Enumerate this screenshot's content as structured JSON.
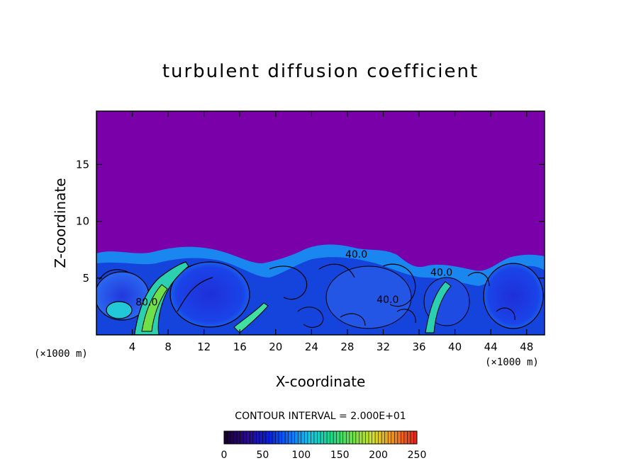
{
  "chart_data": {
    "type": "heatmap",
    "title": "turbulent diffusion coefficient",
    "xlabel": "X-coordinate",
    "ylabel": "Z-coordinate",
    "x_units": "(×1000 m)",
    "z_units": "(×1000 m)",
    "xlim": [
      0,
      50
    ],
    "ylim": [
      0,
      19.7
    ],
    "x_ticks": [
      4,
      8,
      12,
      16,
      20,
      24,
      28,
      32,
      36,
      40,
      44,
      48
    ],
    "y_ticks": [
      5,
      10,
      15
    ],
    "contour_interval_text": "CONTOUR INTERVAL = 2.000E+01",
    "contour_labels": [
      {
        "text": "80.0",
        "x": 5.6,
        "z": 2.6
      },
      {
        "text": "40.0",
        "x": 29.0,
        "z": 6.8
      },
      {
        "text": "40.0",
        "x": 32.5,
        "z": 2.8
      },
      {
        "text": "40.0",
        "x": 38.5,
        "z": 5.2
      }
    ],
    "colorbar": {
      "min": 0,
      "max": 250,
      "tick_labels": [
        "0",
        "50",
        "100",
        "150",
        "200",
        "250"
      ],
      "colors": [
        "#1a0033",
        "#2a0a8a",
        "#0a1fd6",
        "#0a6cff",
        "#14c8e6",
        "#19d98a",
        "#6fe04a",
        "#d6e02a",
        "#f08a1e",
        "#e0281e"
      ]
    },
    "background_color": "#7a00aa",
    "field_top_km": 6.8,
    "grid": false
  }
}
